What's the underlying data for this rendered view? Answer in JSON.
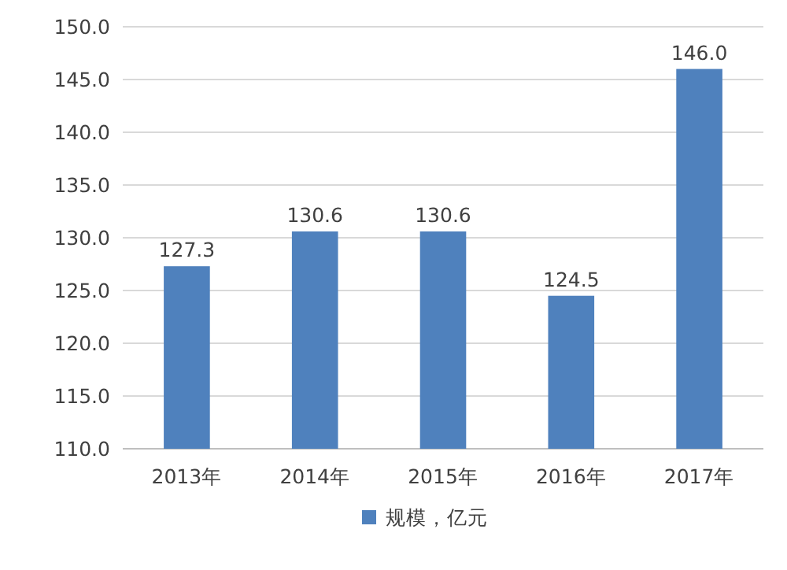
{
  "chart_data": {
    "type": "bar",
    "categories": [
      "2013年",
      "2014年",
      "2015年",
      "2016年",
      "2017年"
    ],
    "series": [
      {
        "name": "规模，亿元",
        "color": "#4f81bd",
        "values": [
          127.3,
          130.6,
          130.6,
          124.5,
          146.0
        ],
        "value_labels": [
          "127.3",
          "130.6",
          "130.6",
          "124.5",
          "146.0"
        ]
      }
    ],
    "ylim": [
      110,
      150
    ],
    "yticks": [
      {
        "value": 110,
        "label": "110.0"
      },
      {
        "value": 115,
        "label": "115.0"
      },
      {
        "value": 120,
        "label": "120.0"
      },
      {
        "value": 125,
        "label": "125.0"
      },
      {
        "value": 130,
        "label": "130.0"
      },
      {
        "value": 135,
        "label": "135.0"
      },
      {
        "value": 140,
        "label": "140.0"
      },
      {
        "value": 145,
        "label": "145.0"
      },
      {
        "value": 150,
        "label": "150.0"
      }
    ],
    "grid": "y",
    "legend": "bottom"
  }
}
